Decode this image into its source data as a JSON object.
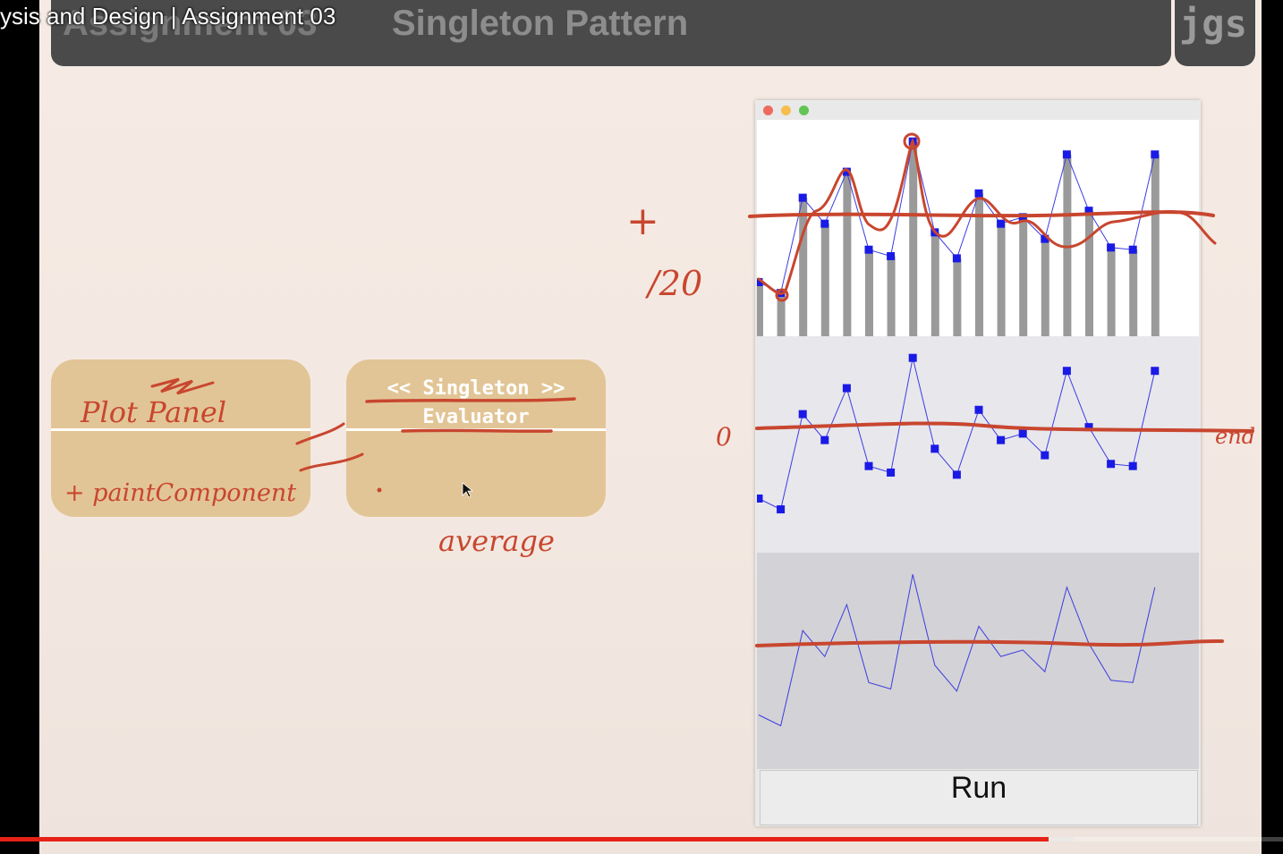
{
  "video": {
    "title": "ysis and Design | Assignment 03",
    "progress_played_fraction": 0.817,
    "progress_buffered_fraction": 0.837
  },
  "slide": {
    "title": "Singleton Pattern",
    "title_covered": "Assignment 03",
    "logo": "jgs",
    "uml_left": {
      "name": "Plot Panel",
      "method": "+ paintComponent"
    },
    "uml_right": {
      "stereotype": "<< Singleton >>",
      "name": "Evaluator"
    },
    "annotations": {
      "plus": "+",
      "divide": "/20",
      "zero": "0",
      "average": "average",
      "end_note": "end"
    }
  },
  "app": {
    "run_label": "Run",
    "traffic_colors": [
      "#ee6a5f",
      "#f5be4f",
      "#62c554"
    ],
    "bar_color": "#9a9a9a",
    "point_color": "#1a1ae6",
    "ink_color": "#c8462f"
  },
  "chart_data": [
    {
      "type": "bar",
      "panel": "top",
      "values": [
        25,
        20,
        64,
        52,
        76,
        40,
        37,
        90,
        48,
        36,
        66,
        52,
        55,
        45,
        84,
        58,
        41,
        40,
        84
      ],
      "overlay": "line-with-square-markers"
    },
    {
      "type": "scatter",
      "panel": "middle",
      "values": [
        25,
        20,
        64,
        52,
        76,
        40,
        37,
        90,
        48,
        36,
        66,
        52,
        55,
        45,
        84,
        58,
        41,
        40,
        84
      ],
      "connected": true
    },
    {
      "type": "line",
      "panel": "bottom",
      "values": [
        25,
        20,
        64,
        52,
        76,
        40,
        37,
        90,
        48,
        36,
        66,
        52,
        55,
        45,
        84,
        58,
        41,
        40,
        84
      ]
    }
  ]
}
